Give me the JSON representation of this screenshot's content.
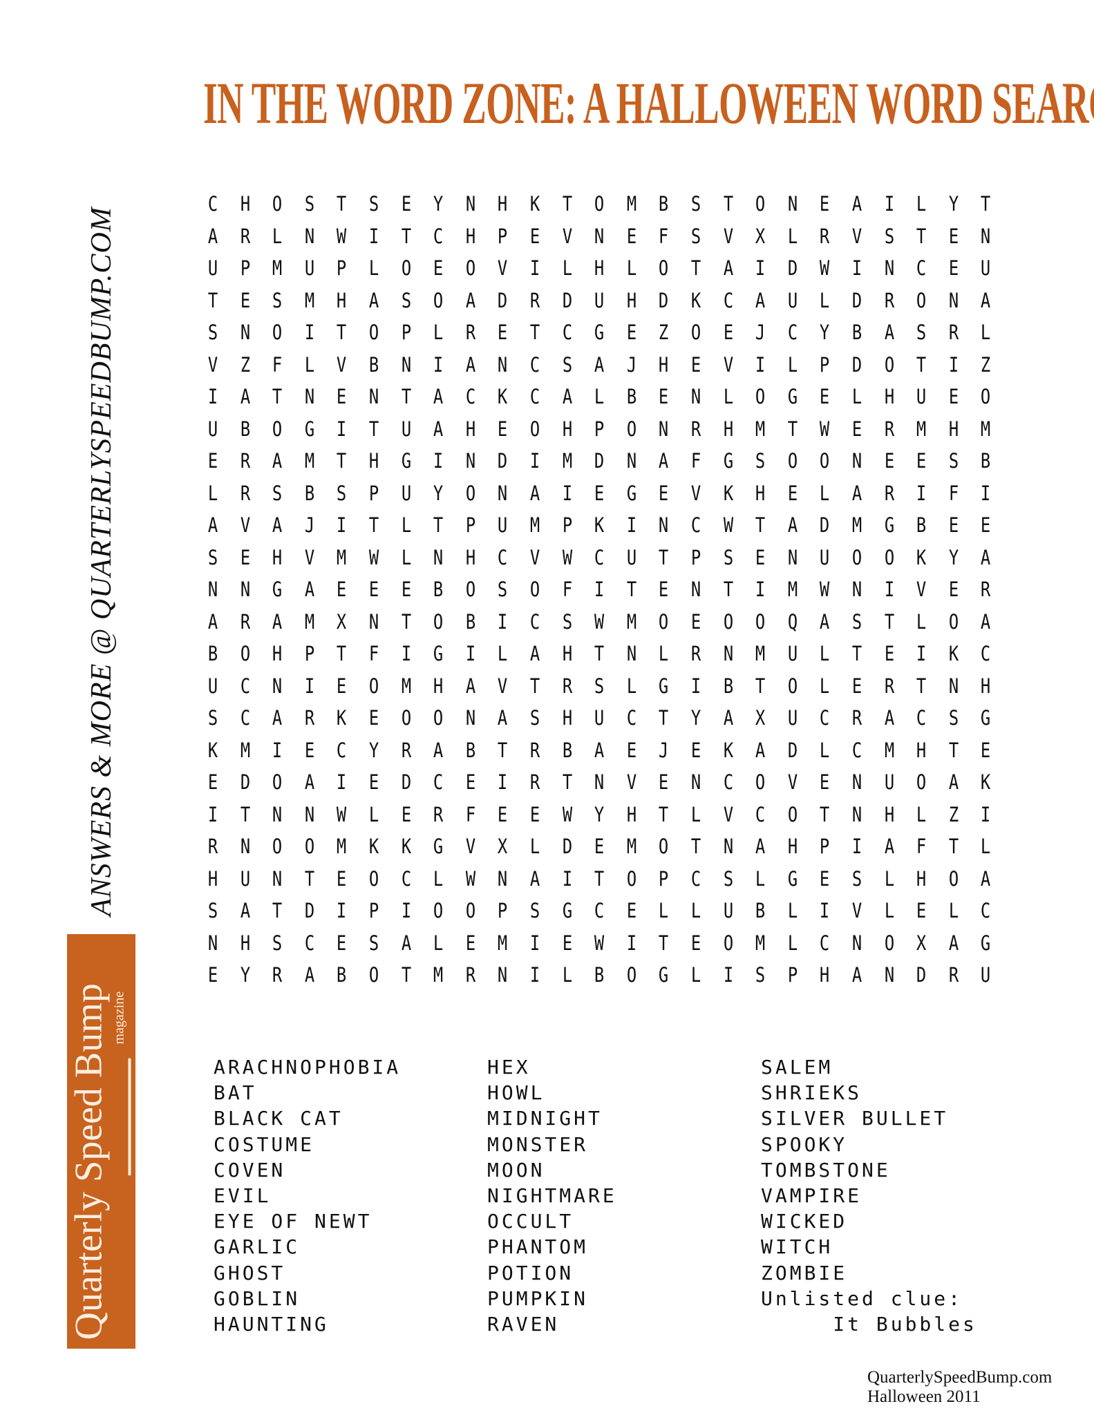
{
  "title": "IN THE WORD ZONE: A HALLOWEEN WORD SEARCH",
  "side_text": "ANSWERS & MORE @ QUARTERLYSPEEDBUMP.COM",
  "logo": {
    "name": "Quarterly Speed Bump",
    "sub": "magazine",
    "color": "#c8621f"
  },
  "accent_color": "#c8601e",
  "grid": [
    "CHOSTSEYNHKTOMBSTONEAILYT",
    "ARLNWITCHPEVNEFSVXLRVSTEN",
    "UPMUPLOEOVILHLOTAIDWINCEU",
    "TESMHASOADRDUHDKCAULDRONA",
    "SNOITOPLRETCGEZOEJCYBASRL",
    "VZFLVBNIANCSAJHEVILPDOTIZ",
    "IATNENTACKCALBENLOGELHUEO",
    "UBOGITUAHEOHPONRHMTWERMHM",
    "ERAMTHGINDIMDNAFGSOONEESB",
    "LRSBSPUYONAIEGEVKHELARIFI",
    "AVAJITLTPUMPKINCWTADMGBEE",
    "SEHVMWLNHCVWCUTPSENUOOKYA",
    "NNGAEEEBOSOFITENTIMWNIVER",
    "ARAMXNTOBICSWMOEOOQASTLOA",
    "BOHPTFIGILAHTNLRNMULTEIKC",
    "UCNIEOMHAVTRSLGIBTOLERTNH",
    "SCARKEOONASHUCTYAXUCRACSG",
    "KMIECYRABTRBAEJEKADLCMHTE",
    "EDOAIEDCEIRTNVENCOVENUOAK",
    "ITNNWLERFEEWYHTLVCOTNHLZI",
    "RNOOMKKGVXLDEMOTNAHPIAFTL",
    "HUNTEOCLWNAITOPCSLGESLHOA",
    "SATDIPIOOPSGCELLUBLIVLELC",
    "NHSCESALEMIEWITEOMLCNOXAG",
    "EYRABOTMRNILBOGLISPHANDRU"
  ],
  "word_list": [
    [
      "ARACHNOPHOBIA",
      "BAT",
      "BLACK CAT",
      "COSTUME",
      "COVEN",
      "EVIL",
      "EYE OF NEWT",
      "GARLIC",
      "GHOST",
      "GOBLIN",
      "HAUNTING"
    ],
    [
      "HEX",
      "HOWL",
      "MIDNIGHT",
      "MONSTER",
      "MOON",
      "NIGHTMARE",
      "OCCULT",
      "PHANTOM",
      "POTION",
      "PUMPKIN",
      "RAVEN"
    ],
    [
      "SALEM",
      "SHRIEKS",
      "SILVER BULLET",
      "SPOOKY",
      "TOMBSTONE",
      "VAMPIRE",
      "WICKED",
      "WITCH",
      "ZOMBIE",
      "Unlisted clue:",
      "     It Bubbles"
    ]
  ],
  "footer": {
    "site": "QuarterlySpeedBump.com",
    "issue": "Halloween 2011"
  }
}
